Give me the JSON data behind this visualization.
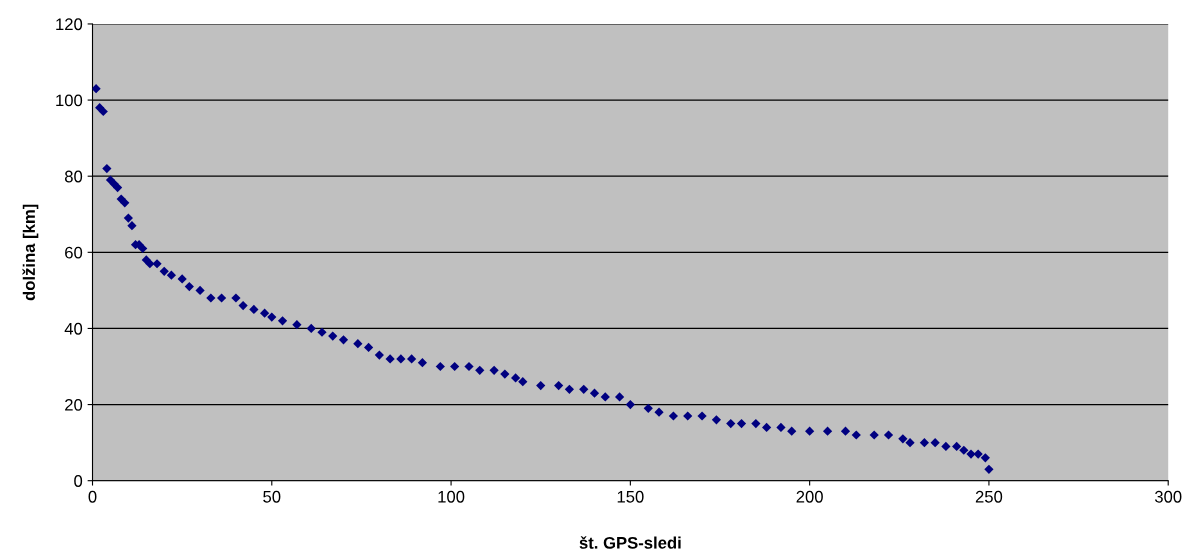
{
  "chart_data": {
    "type": "scatter",
    "xlabel": "št. GPS-sledi",
    "ylabel": "dolžina [km]",
    "xlim": [
      0,
      300
    ],
    "xticks": [
      0,
      50,
      100,
      150,
      200,
      250,
      300
    ],
    "ylim": [
      0,
      120
    ],
    "yticks": [
      0,
      20,
      40,
      60,
      80,
      100,
      120
    ],
    "grid": "y",
    "marker": "diamond",
    "series": [
      {
        "color": "#000080",
        "x": [
          1,
          2,
          3,
          4,
          5,
          6,
          7,
          8,
          9,
          10,
          11,
          12,
          13,
          14,
          15,
          16,
          18,
          20,
          22,
          25,
          27,
          30,
          33,
          36,
          40,
          42,
          45,
          48,
          50,
          53,
          57,
          61,
          64,
          67,
          70,
          74,
          77,
          80,
          83,
          86,
          89,
          92,
          97,
          101,
          105,
          108,
          112,
          115,
          118,
          120,
          125,
          130,
          133,
          137,
          140,
          143,
          147,
          150,
          155,
          158,
          162,
          166,
          170,
          174,
          178,
          181,
          185,
          188,
          192,
          195,
          200,
          205,
          210,
          213,
          218,
          222,
          226,
          228,
          232,
          235,
          238,
          241,
          243,
          245,
          247,
          249,
          250
        ],
        "values": [
          103,
          98,
          97,
          82,
          79,
          78,
          77,
          74,
          73,
          69,
          67,
          62,
          62,
          61,
          58,
          57,
          57,
          55,
          54,
          53,
          51,
          50,
          48,
          48,
          48,
          46,
          45,
          44,
          43,
          42,
          41,
          40,
          39,
          38,
          37,
          36,
          35,
          33,
          32,
          32,
          32,
          31,
          30,
          30,
          30,
          29,
          29,
          28,
          27,
          26,
          25,
          25,
          24,
          24,
          23,
          22,
          22,
          20,
          19,
          18,
          17,
          17,
          17,
          16,
          15,
          15,
          15,
          14,
          14,
          13,
          13,
          13,
          13,
          12,
          12,
          12,
          11,
          10,
          10,
          10,
          9,
          9,
          8,
          7,
          7,
          6,
          3
        ]
      }
    ]
  }
}
